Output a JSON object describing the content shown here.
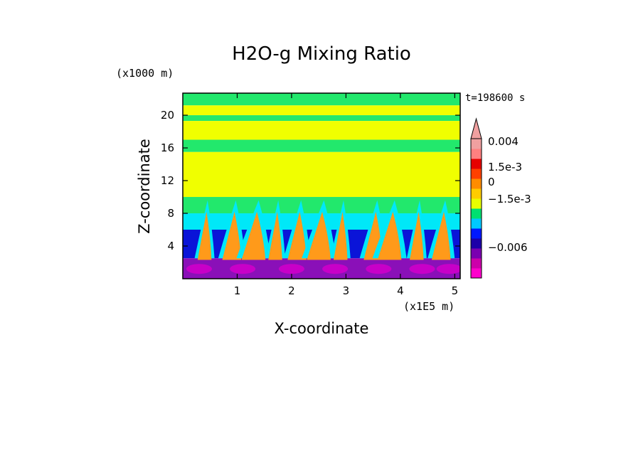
{
  "chart_data": {
    "type": "heatmap",
    "title": "H2O-g Mixing Ratio",
    "xlabel": "X-coordinate",
    "ylabel": "Z-coordinate",
    "x_unit": "(x1E5 m)",
    "y_unit": "(x1000 m)",
    "time_label": "t=198600 s",
    "xlim": [
      0,
      5.1
    ],
    "ylim": [
      0,
      22.7
    ],
    "x_ticks": [
      "1",
      "2",
      "3",
      "4",
      "5"
    ],
    "x_tick_values": [
      1,
      2,
      3,
      4,
      5
    ],
    "y_ticks": [
      "4",
      "8",
      "12",
      "16",
      "20"
    ],
    "y_tick_values": [
      4,
      8,
      12,
      16,
      20
    ],
    "bands": [
      {
        "zmin": 21.2,
        "zmax": 22.7,
        "level": "green"
      },
      {
        "zmin": 20.0,
        "zmax": 21.2,
        "level": "yellow"
      },
      {
        "zmin": 19.3,
        "zmax": 20.0,
        "level": "green"
      },
      {
        "zmin": 17.0,
        "zmax": 19.3,
        "level": "yellow"
      },
      {
        "zmin": 15.5,
        "zmax": 17.0,
        "level": "green"
      },
      {
        "zmin": 10.0,
        "zmax": 15.5,
        "level": "yellow"
      },
      {
        "zmin": 8.0,
        "zmax": 10.0,
        "level": "green"
      },
      {
        "zmin": 6.0,
        "zmax": 8.0,
        "level": "cyan"
      },
      {
        "zmin": 2.5,
        "zmax": 6.0,
        "level": "blue"
      },
      {
        "zmin": 0,
        "zmax": 2.5,
        "level": "purple"
      }
    ],
    "colorbar": {
      "labels": [
        "0.004",
        "1.5e-3",
        "0",
        "−1.5e-3",
        "−0.006"
      ],
      "colors": [
        "#ff00cc",
        "#cc00aa",
        "#7a00b0",
        "#1c00a8",
        "#0018ff",
        "#00c8ff",
        "#00e070",
        "#e8ff00",
        "#ffcc00",
        "#ff8c00",
        "#ff4000",
        "#e60000",
        "#ff8080",
        "#f0a0a0"
      ]
    },
    "palette": {
      "green": "#22e86c",
      "yellow": "#f0ff00",
      "cyan": "#00e8f8",
      "blue": "#0a14d8",
      "purple": "#8a10b8",
      "orange": "#ff9a1a",
      "magenta": "#c800c8"
    }
  }
}
